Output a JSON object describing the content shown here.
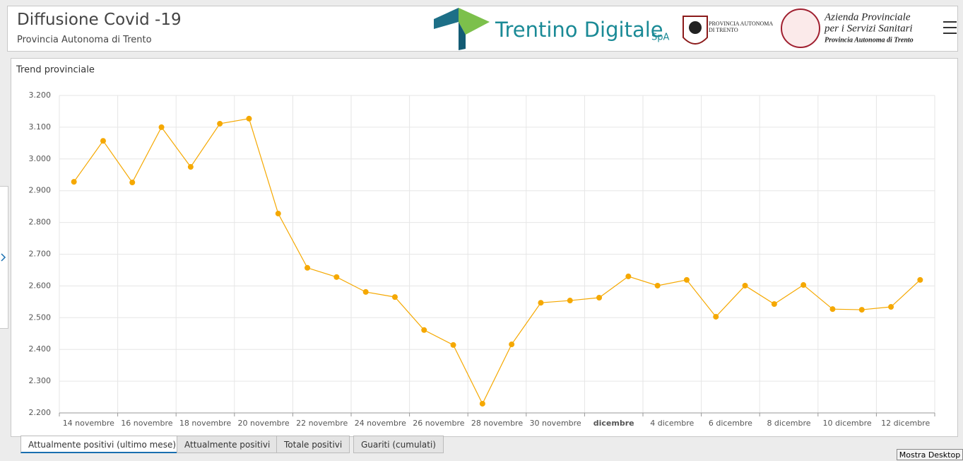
{
  "header": {
    "title": "Diffusione Covid -19",
    "subtitle": "Provincia Autonoma di Trento",
    "logo_digitale": "Trentino Digitale",
    "logo_spa": "SpA",
    "logo_provincia": [
      "PROVINCIA AUTONOMA",
      "DI TRENTO"
    ],
    "logo_azienda": [
      "Azienda Provinciale",
      "per i Servizi Sanitari",
      "Provincia Autonoma di Trento"
    ]
  },
  "chart_data": {
    "type": "line",
    "title": "Trend provinciale",
    "color": "#f5a800",
    "categories": [
      "14 novembre",
      null,
      "16 novembre",
      null,
      "18 novembre",
      null,
      "20 novembre",
      null,
      "22 novembre",
      null,
      "24 novembre",
      null,
      "26 novembre",
      null,
      "28 novembre",
      null,
      "30 novembre",
      null,
      "dicembre",
      null,
      "4 dicembre",
      null,
      "6 dicembre",
      null,
      "8 dicembre",
      null,
      "10 dicembre",
      null,
      "12 dicembre",
      null
    ],
    "values": [
      2928,
      3057,
      2926,
      3100,
      2975,
      3111,
      3127,
      2828,
      2657,
      2628,
      2581,
      2565,
      2461,
      2414,
      2229,
      2416,
      2547,
      2554,
      2563,
      2630,
      2601,
      2619,
      2503,
      2601,
      2543,
      2603,
      2527,
      2525,
      2534,
      2619
    ],
    "ylim": [
      2200,
      3200
    ],
    "yticks": [
      {
        "value": 2200,
        "label": "2.200"
      },
      {
        "value": 2300,
        "label": "2.300"
      },
      {
        "value": 2400,
        "label": "2.400"
      },
      {
        "value": 2500,
        "label": "2.500"
      },
      {
        "value": 2600,
        "label": "2.600"
      },
      {
        "value": 2700,
        "label": "2.700"
      },
      {
        "value": 2800,
        "label": "2.800"
      },
      {
        "value": 2900,
        "label": "2.900"
      },
      {
        "value": 3000,
        "label": "3.000"
      },
      {
        "value": 3100,
        "label": "3.100"
      },
      {
        "value": 3200,
        "label": "3.200"
      }
    ],
    "grid": true
  },
  "tabs": [
    "Attualmente positivi (ultimo mese)",
    "Attualmente positivi",
    "Totale positivi",
    "Guariti (cumulati)"
  ],
  "desktop_button": "Mostra Desktop"
}
